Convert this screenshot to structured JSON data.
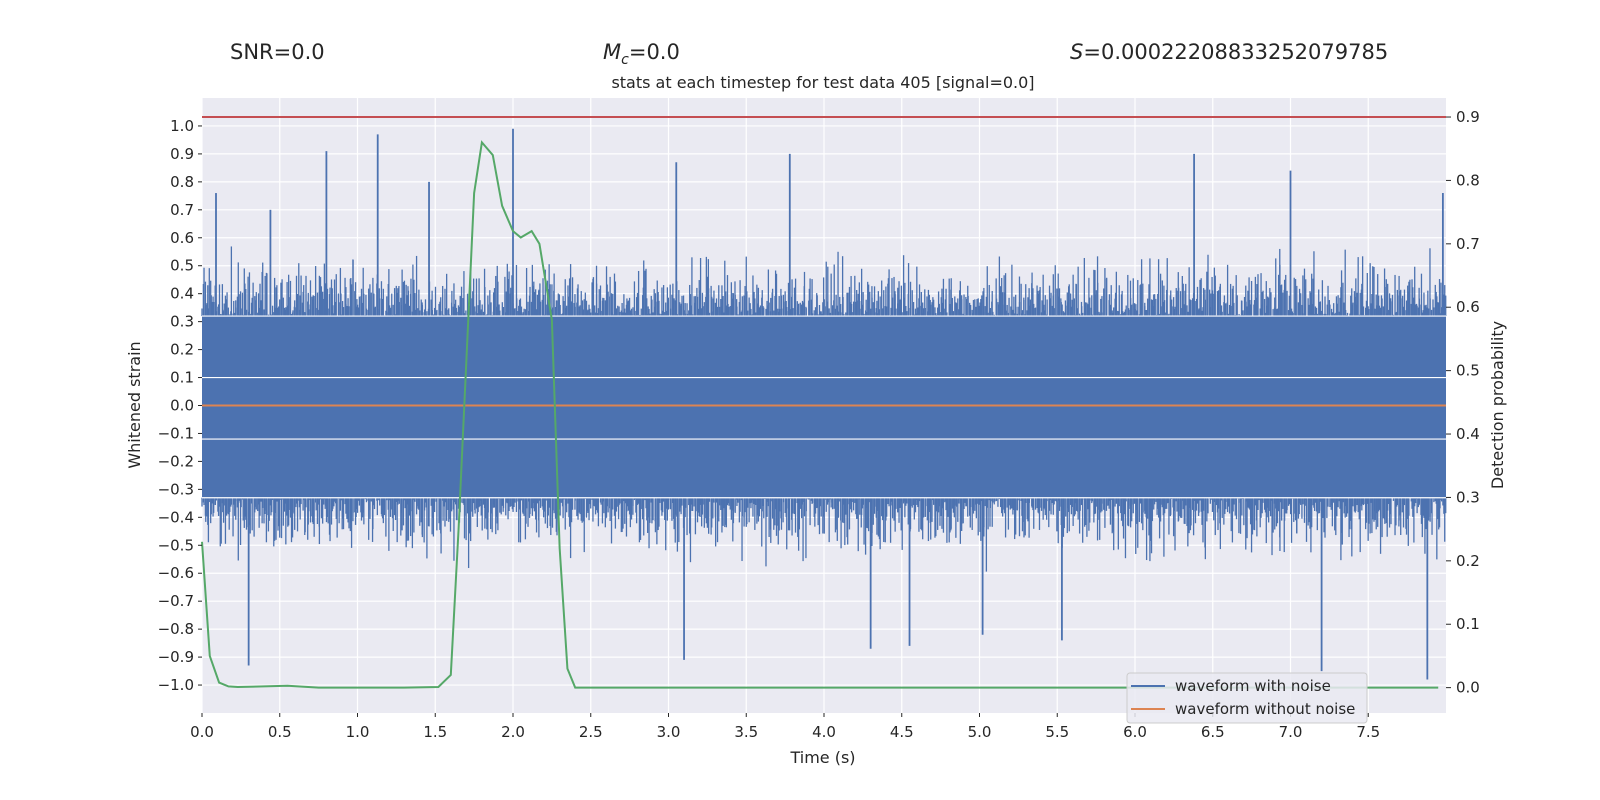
{
  "header": {
    "snr_label": "SNR",
    "snr_value": "0.0",
    "mc_symbol": "M",
    "mc_subscript": "c",
    "mc_value": "0.0",
    "s_symbol": "S",
    "s_value": "0.00022208833252079785"
  },
  "chart_data": {
    "type": "line",
    "title": "stats at each timestep for test data 405 [signal=0.0]",
    "xlabel": "Time (s)",
    "ylabel": "Whitened strain",
    "y2label": "Detection probability",
    "xlim": [
      0.0,
      8.0
    ],
    "ylim": [
      -1.1,
      1.1
    ],
    "y2lim": [
      -0.04,
      0.93
    ],
    "xticks": [
      0.0,
      0.5,
      1.0,
      1.5,
      2.0,
      2.5,
      3.0,
      3.5,
      4.0,
      4.5,
      5.0,
      5.5,
      6.0,
      6.5,
      7.0,
      7.5
    ],
    "xtick_labels": [
      "0.0",
      "0.5",
      "1.0",
      "1.5",
      "2.0",
      "2.5",
      "3.0",
      "3.5",
      "4.0",
      "4.5",
      "5.0",
      "5.5",
      "6.0",
      "6.5",
      "7.0",
      "7.5"
    ],
    "yticks": [
      1.0,
      0.9,
      0.8,
      0.7,
      0.6,
      0.5,
      0.4,
      0.3,
      0.2,
      0.1,
      0.0,
      -0.1,
      -0.2,
      -0.3,
      -0.4,
      -0.5,
      -0.6,
      -0.7,
      -0.8,
      -0.9,
      -1.0
    ],
    "ytick_labels": [
      "1.0",
      "0.9",
      "0.8",
      "0.7",
      "0.6",
      "0.5",
      "0.4",
      "0.3",
      "0.2",
      "0.1",
      "0.0",
      "−0.1",
      "−0.2",
      "−0.3",
      "−0.4",
      "−0.5",
      "−0.6",
      "−0.7",
      "−0.8",
      "−0.9",
      "−1.0"
    ],
    "y2ticks": [
      0.9,
      0.8,
      0.7,
      0.6,
      0.5,
      0.4,
      0.3,
      0.2,
      0.1,
      0.0
    ],
    "y2tick_labels": [
      "0.9",
      "0.8",
      "0.7",
      "0.6",
      "0.5",
      "0.4",
      "0.3",
      "0.2",
      "0.1",
      "0.0"
    ],
    "grid": true,
    "background": "#eaeaf2",
    "legend_position": "lower right",
    "series": [
      {
        "name": "waveform with noise",
        "color": "#4c72b0",
        "axis": "left",
        "style": "dense noise band",
        "band_upper": 0.32,
        "band_lower": -0.33,
        "noise_envelope": [
          -0.98,
          0.99
        ],
        "spikes": [
          {
            "x": 0.09,
            "y": 0.76
          },
          {
            "x": 0.44,
            "y": 0.7
          },
          {
            "x": 0.8,
            "y": 0.91
          },
          {
            "x": 1.13,
            "y": 0.97
          },
          {
            "x": 1.46,
            "y": 0.8
          },
          {
            "x": 2.0,
            "y": 0.99
          },
          {
            "x": 3.05,
            "y": 0.87
          },
          {
            "x": 3.78,
            "y": 0.9
          },
          {
            "x": 6.38,
            "y": 0.9
          },
          {
            "x": 7.0,
            "y": 0.84
          },
          {
            "x": 7.98,
            "y": 0.76
          },
          {
            "x": 0.3,
            "y": -0.93
          },
          {
            "x": 3.1,
            "y": -0.91
          },
          {
            "x": 4.3,
            "y": -0.87
          },
          {
            "x": 4.55,
            "y": -0.86
          },
          {
            "x": 5.02,
            "y": -0.82
          },
          {
            "x": 5.53,
            "y": -0.84
          },
          {
            "x": 7.2,
            "y": -0.95
          },
          {
            "x": 7.88,
            "y": -0.98
          }
        ]
      },
      {
        "name": "waveform without noise",
        "color": "#dd8452",
        "axis": "left",
        "x": [
          0.0,
          8.0
        ],
        "y": [
          0.0,
          0.0
        ]
      },
      {
        "color": "#55a868",
        "axis": "right",
        "x": [
          0.0,
          0.05,
          0.11,
          0.17,
          0.23,
          0.55,
          0.75,
          1.0,
          1.3,
          1.52,
          1.6,
          1.65,
          1.75,
          1.8,
          1.87,
          1.93,
          2.0,
          2.05,
          2.12,
          2.17,
          2.25,
          2.3,
          2.35,
          2.4,
          2.47,
          3.0,
          7.95
        ],
        "y": [
          0.23,
          0.05,
          0.008,
          0.002,
          0.001,
          0.003,
          0.0,
          0.0,
          0.0,
          0.001,
          0.02,
          0.25,
          0.78,
          0.86,
          0.84,
          0.76,
          0.72,
          0.71,
          0.72,
          0.7,
          0.58,
          0.22,
          0.03,
          0.0,
          0.0,
          0.0,
          0.0
        ]
      },
      {
        "color": "#c44e52",
        "axis": "right",
        "x": [
          0.0,
          8.0
        ],
        "y": [
          0.9,
          0.9
        ]
      }
    ]
  }
}
